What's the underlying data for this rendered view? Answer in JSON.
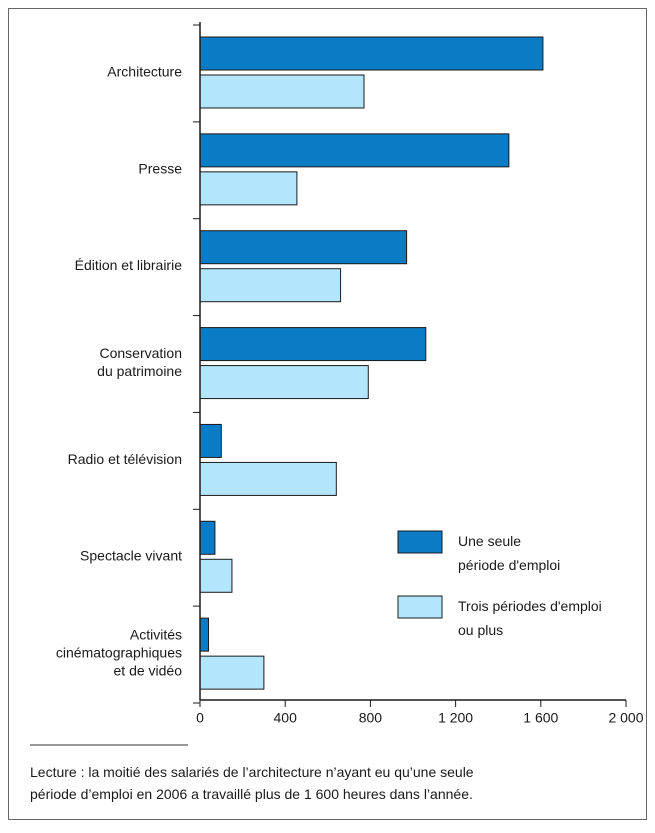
{
  "chart_data": {
    "type": "barh",
    "categories": [
      "Architecture",
      "Presse",
      "Édition et librairie",
      "Conservation\ndu patrimoine",
      "Radio et télévision",
      "Spectacle vivant",
      "Activités\ncinématographiques\net de vidéo"
    ],
    "series": [
      {
        "name": "Une seule\npériode d'emploi",
        "color": "#0a7bc5",
        "values": [
          1610,
          1450,
          970,
          1060,
          100,
          70,
          40
        ]
      },
      {
        "name": "Trois périodes d'emploi\nou plus",
        "color": "#b3e5fc",
        "values": [
          770,
          455,
          660,
          790,
          640,
          150,
          300
        ]
      }
    ],
    "xlim": [
      0,
      2000
    ],
    "xticks": [
      0,
      400,
      800,
      {
        "value": 1200,
        "label": "1 200"
      },
      {
        "value": 1600,
        "label": "1 600"
      },
      {
        "value": 2000,
        "label": "2 000"
      }
    ],
    "note": "Lecture : la moitié des salariés de l’architecture n’ayant eu qu’une seule\npériode d’emploi en 2006 a travaillé plus de 1 600 heures dans l’année."
  }
}
